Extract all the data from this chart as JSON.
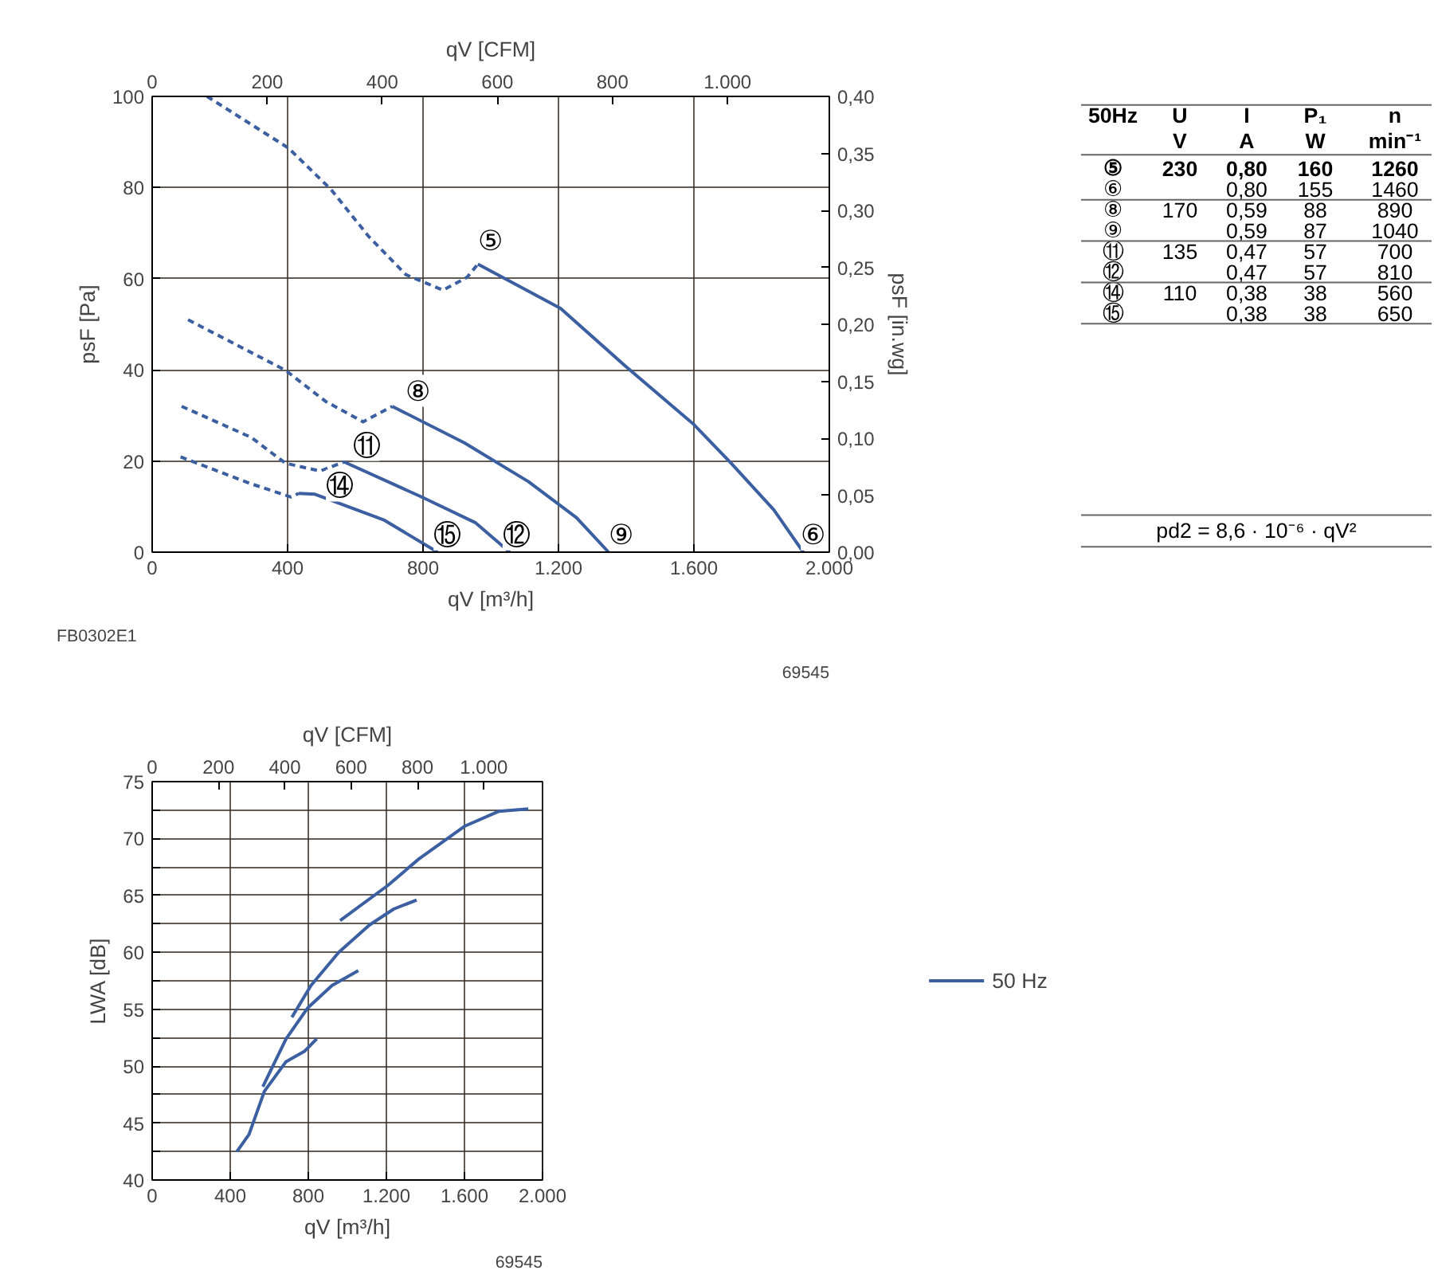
{
  "chart_data": [
    {
      "type": "line",
      "xlabel": "qV [m³/h]",
      "x2label": "qV [CFM]",
      "ylabel": "psF [Pa]",
      "y2label": "psF [in.wg]",
      "xlim": [
        0,
        2000
      ],
      "xticks": [
        0,
        400,
        800,
        {
          "value": 1200,
          "label": "1.200"
        },
        {
          "value": 1600,
          "label": "1.600"
        },
        {
          "value": 2000,
          "label": "2.000"
        }
      ],
      "x2lim": [
        0,
        1177
      ],
      "x2ticks": [
        0,
        200,
        400,
        600,
        800,
        {
          "value": 1000,
          "label": "1.000"
        }
      ],
      "ylim": [
        0,
        100
      ],
      "yticks": [
        0,
        20,
        40,
        60,
        80,
        100
      ],
      "y2lim": [
        0,
        0.4
      ],
      "y2ticks": [
        {
          "value": 0,
          "label": "0,00"
        },
        {
          "value": 0.05,
          "label": "0,05"
        },
        {
          "value": 0.1,
          "label": "0,10"
        },
        {
          "value": 0.15,
          "label": "0,15"
        },
        {
          "value": 0.2,
          "label": "0,20"
        },
        {
          "value": 0.25,
          "label": "0,25"
        },
        {
          "value": 0.3,
          "label": "0,30"
        },
        {
          "value": 0.35,
          "label": "0,35"
        },
        {
          "value": 0.4,
          "label": "0,40"
        }
      ],
      "grid": true,
      "legend": false,
      "series": [
        {
          "color": "#3b5fa0",
          "line_style": "dashed",
          "x": [
            162,
            402,
            528,
            638,
            749,
            859,
            930,
            962
          ],
          "values": [
            100,
            88.7,
            79.6,
            69.4,
            60.9,
            57.5,
            60.3,
            63.2
          ]
        },
        {
          "color": "#3b5fa0",
          "line_style": "solid",
          "x": [
            962,
            1206,
            1395,
            1600,
            1710,
            1836,
            1923
          ],
          "values": [
            63.2,
            53.5,
            41.0,
            28.0,
            19.5,
            9.3,
            0
          ]
        },
        {
          "color": "#3b5fa0",
          "line_style": "dashed",
          "x": [
            106,
            394,
            512,
            623,
            709
          ],
          "values": [
            51.0,
            39.9,
            33.1,
            28.6,
            32.0
          ]
        },
        {
          "color": "#3b5fa0",
          "line_style": "solid",
          "x": [
            709,
            922,
            1111,
            1253,
            1348
          ],
          "values": [
            32.0,
            24.0,
            15.5,
            7.6,
            0
          ]
        },
        {
          "color": "#3b5fa0",
          "line_style": "dashed",
          "x": [
            87,
            292,
            394,
            496,
            567
          ],
          "values": [
            32.0,
            25.2,
            19.5,
            17.8,
            19.8
          ]
        },
        {
          "color": "#3b5fa0",
          "line_style": "solid",
          "x": [
            567,
            796,
            954,
            1056
          ],
          "values": [
            19.8,
            12.1,
            6.5,
            0
          ]
        },
        {
          "color": "#3b5fa0",
          "line_style": "dashed",
          "x": [
            84,
            292,
            410,
            433
          ],
          "values": [
            20.9,
            15.0,
            12.1,
            12.9
          ]
        },
        {
          "color": "#3b5fa0",
          "line_style": "solid",
          "x": [
            433,
            481,
            686,
            843
          ],
          "values": [
            12.9,
            12.7,
            7.0,
            0
          ]
        }
      ],
      "annotations": [
        {
          "text": "⑤",
          "x": 998,
          "y": 68.3
        },
        {
          "text": "⑥",
          "x": 1951,
          "y": 3.9
        },
        {
          "text": "⑧",
          "x": 783,
          "y": 35.4
        },
        {
          "text": "⑨",
          "x": 1384,
          "y": 3.9
        },
        {
          "text": "⑪",
          "x": 632,
          "y": 23.5
        },
        {
          "text": "⑫",
          "x": 1075,
          "y": 3.9
        },
        {
          "text": "⑭",
          "x": 553,
          "y": 14.6
        },
        {
          "text": "⑮",
          "x": 871,
          "y": 3.9
        },
        "FB0302E1",
        "69545"
      ]
    },
    {
      "type": "other",
      "categories": [
        "50Hz",
        "U",
        "I",
        "P₁",
        "n"
      ],
      "cell_labels": [
        [
          null,
          "V",
          "A",
          "W",
          "min⁻¹"
        ],
        [
          "⑤",
          "230",
          "0,80",
          "160",
          "1260"
        ],
        [
          "⑥",
          null,
          "0,80",
          "155",
          "1460"
        ],
        [
          "⑧",
          "170",
          "0,59",
          "88",
          "890"
        ],
        [
          "⑨",
          null,
          "0,59",
          "87",
          "1040"
        ],
        [
          "⑪",
          "135",
          "0,47",
          "57",
          "700"
        ],
        [
          "⑫",
          null,
          "0,47",
          "57",
          "810"
        ],
        [
          "⑭",
          "110",
          "0,38",
          "38",
          "560"
        ],
        [
          "⑮",
          null,
          "0,38",
          "38",
          "650"
        ]
      ],
      "annotations": [
        "pd2 = 8,6 · 10⁻⁶ · qV²"
      ]
    },
    {
      "type": "line",
      "xlabel": "qV [m³/h]",
      "x2label": "qV [CFM]",
      "ylabel": "LWA [dB]",
      "xlim": [
        0,
        2000
      ],
      "xticks": [
        0,
        400,
        800,
        {
          "value": 1200,
          "label": "1.200"
        },
        {
          "value": 1600,
          "label": "1.600"
        },
        {
          "value": 2000,
          "label": "2.000"
        }
      ],
      "x2lim": [
        0,
        1177
      ],
      "x2ticks": [
        0,
        200,
        400,
        600,
        800,
        {
          "value": 1000,
          "label": "1.000"
        }
      ],
      "ylim": [
        40,
        75
      ],
      "yticks": [
        40,
        {
          "value": 42.5,
          "label": null
        },
        45,
        {
          "value": 47.5,
          "label": null
        },
        50,
        {
          "value": 52.5,
          "label": null
        },
        55,
        {
          "value": 57.5,
          "label": null
        },
        60,
        {
          "value": 62.5,
          "label": null
        },
        65,
        {
          "value": 67.5,
          "label": null
        },
        70,
        {
          "value": 72.5,
          "label": null
        },
        75
      ],
      "grid": true,
      "legend": "right",
      "series": [
        {
          "name": "50 Hz",
          "color": "#3b5fa0",
          "x": [
            963,
            1209,
            1366,
            1603,
            1777,
            1927
          ],
          "values": [
            62.8,
            65.9,
            68.2,
            71.1,
            72.4,
            72.6
          ]
        },
        {
          "color": "#3b5fa0",
          "x": [
            716,
            814,
            956,
            1113,
            1237,
            1355
          ],
          "values": [
            54.3,
            57.1,
            60.0,
            62.4,
            63.8,
            64.6
          ]
        },
        {
          "color": "#3b5fa0",
          "x": [
            567,
            686,
            796,
            922,
            1056
          ],
          "values": [
            48.2,
            52.4,
            55.1,
            57.1,
            58.4
          ]
        },
        {
          "color": "#3b5fa0",
          "x": [
            434,
            496,
            575,
            686,
            780,
            843
          ],
          "values": [
            42.5,
            44.0,
            47.8,
            50.4,
            51.3,
            52.4
          ]
        }
      ],
      "annotations": [
        "69545"
      ]
    }
  ]
}
